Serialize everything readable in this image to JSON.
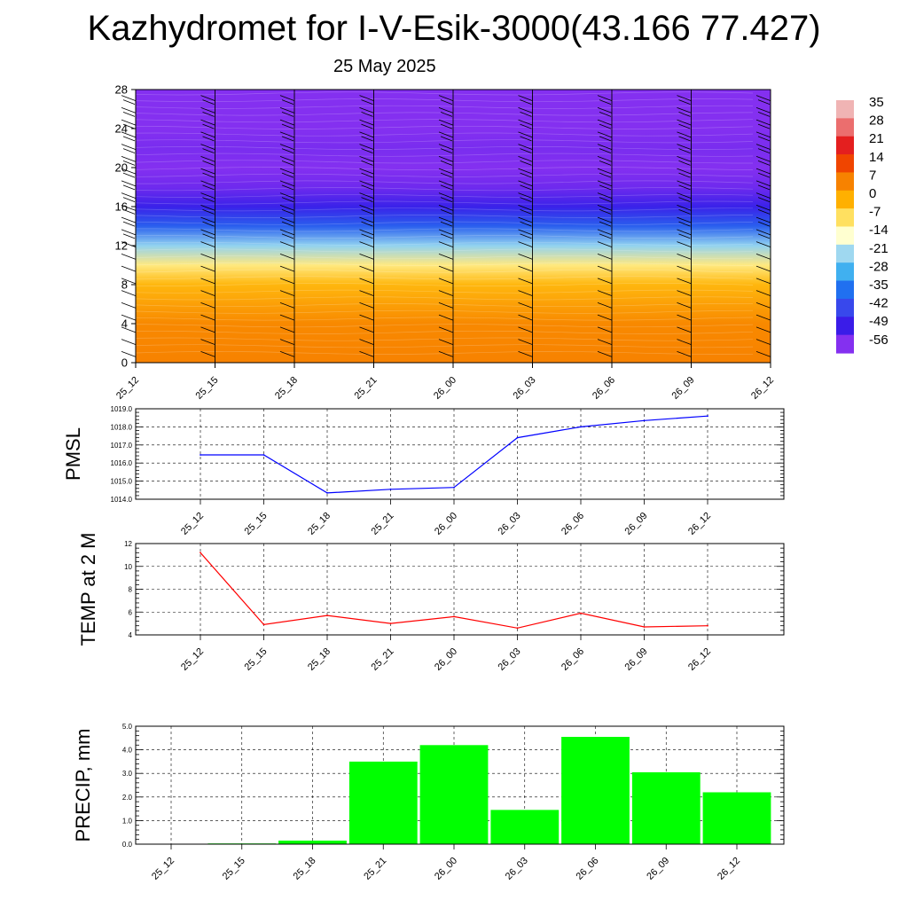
{
  "title": "Kazhydromet for I-V-Esik-3000(43.166 77.427)",
  "subtitle": "25 May 2025",
  "chart_data": [
    {
      "type": "heatmap",
      "x_tick_labels": [
        "25_12",
        "25_15",
        "25_18",
        "25_21",
        "26_00",
        "26_03",
        "26_06",
        "26_09",
        "26_12"
      ],
      "y_ticks": [
        0,
        4,
        8,
        12,
        16,
        20,
        24,
        28
      ],
      "ylim": [
        0,
        28
      ],
      "colorbar_labels": [
        "35",
        "28",
        "21",
        "14",
        "7",
        "0",
        "-7",
        "-14",
        "-21",
        "-28",
        "-35",
        "-42",
        "-49",
        "-56"
      ],
      "colorbar_colors": [
        "#f0b4b4",
        "#eb6e6e",
        "#e41f1f",
        "#f04500",
        "#f78200",
        "#ffb000",
        "#ffe060",
        "#ffffd0",
        "#9fd8f0",
        "#40b0f0",
        "#2070f0",
        "#3848ec",
        "#3a1ce8",
        "#8430f0"
      ],
      "field_bands": [
        {
          "level": 0,
          "value": 7
        },
        {
          "level": 4,
          "value": 6
        },
        {
          "level": 8,
          "value": -1
        },
        {
          "level": 10,
          "value": -9
        },
        {
          "level": 12,
          "value": -22
        },
        {
          "level": 14,
          "value": -38
        },
        {
          "level": 16,
          "value": -48
        },
        {
          "level": 18,
          "value": -54
        },
        {
          "level": 20,
          "value": -57
        },
        {
          "level": 22,
          "value": -55
        },
        {
          "level": 24,
          "value": -59
        },
        {
          "level": 28,
          "value": -60
        }
      ]
    },
    {
      "type": "line",
      "ylabel": "PMSL",
      "x": [
        "25_12",
        "25_15",
        "25_18",
        "25_21",
        "26_00",
        "26_03",
        "26_06",
        "26_09",
        "26_12"
      ],
      "values": [
        1016.45,
        1016.45,
        1014.35,
        1014.55,
        1014.65,
        1017.4,
        1018.0,
        1018.35,
        1018.6
      ],
      "ylim": [
        1014,
        1019
      ],
      "y_tick_labels": [
        "1014.0",
        "1015.0",
        "1016.0",
        "1017.0",
        "1018.0",
        "1019.0"
      ],
      "color": "#0000ff",
      "grid": true
    },
    {
      "type": "line",
      "ylabel": "TEMP at 2 M",
      "x": [
        "25_12",
        "25_15",
        "25_18",
        "25_21",
        "26_00",
        "26_03",
        "26_06",
        "26_09",
        "26_12"
      ],
      "values": [
        11.2,
        4.9,
        5.7,
        5.0,
        5.6,
        4.6,
        5.9,
        4.7,
        4.8
      ],
      "ylim": [
        4,
        12
      ],
      "y_tick_labels": [
        "4",
        "6",
        "8",
        "10",
        "12"
      ],
      "color": "#ff0000",
      "grid": true
    },
    {
      "type": "bar",
      "ylabel": "PRECIP, mm",
      "categories": [
        "25_12",
        "25_15",
        "25_18",
        "25_21",
        "26_00",
        "26_03",
        "26_06",
        "26_09",
        "26_12"
      ],
      "values": [
        0.0,
        0.03,
        0.15,
        3.5,
        4.2,
        1.45,
        4.55,
        3.05,
        2.2
      ],
      "ylim": [
        0,
        5
      ],
      "y_tick_labels": [
        "0.0",
        "1.0",
        "2.0",
        "3.0",
        "4.0",
        "5.0"
      ],
      "color": "#00ff00",
      "grid": true
    }
  ]
}
